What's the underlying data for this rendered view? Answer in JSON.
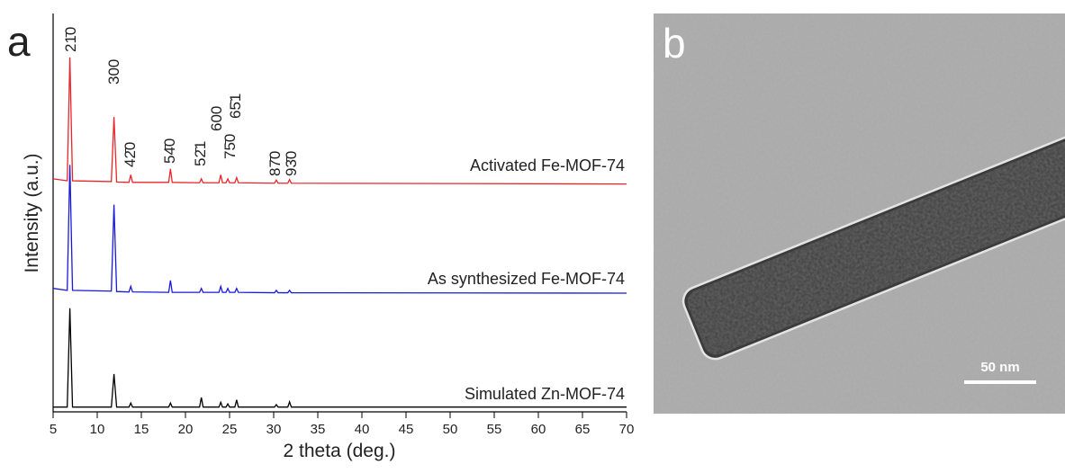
{
  "chart_data": {
    "type": "line",
    "panel_label": "a",
    "x_label": "2 theta (deg.)",
    "y_label": "Intensity (a.u.)",
    "x": [
      5,
      6.6,
      6.9,
      7.2,
      11.6,
      11.9,
      12.2,
      13.6,
      13.8,
      14.0,
      18.1,
      18.3,
      18.5,
      21.6,
      21.8,
      22.0,
      23.8,
      24.0,
      24.2,
      24.6,
      24.8,
      25.0,
      25.6,
      25.8,
      26.0,
      30.1,
      30.3,
      30.5,
      31.6,
      31.8,
      32.0,
      70
    ],
    "series": [
      {
        "name": "Activated Fe-MOF-74",
        "color": "#e8262a",
        "values": [
          58.5,
          58,
          89,
          58,
          57.8,
          74,
          57.7,
          57.6,
          59.5,
          57.6,
          57.6,
          61,
          57.6,
          57.5,
          58.5,
          57.5,
          57.5,
          59.5,
          57.5,
          57.5,
          58.5,
          57.5,
          57.5,
          58.8,
          57.5,
          57.4,
          58.2,
          57.4,
          57.4,
          58.3,
          57.4,
          57.2
        ]
      },
      {
        "name": "As synthesized Fe-MOF-74",
        "color": "#1a1ad6",
        "values": [
          31,
          30.5,
          62,
          30.5,
          30.3,
          52,
          30.2,
          30.1,
          31.5,
          30.1,
          30,
          33,
          30,
          30,
          31,
          30,
          30,
          31.5,
          30,
          30,
          31,
          30,
          30,
          31,
          30,
          29.9,
          30.5,
          29.9,
          29.9,
          30.5,
          29.9,
          29.8
        ]
      },
      {
        "name": "Simulated Zn-MOF-74",
        "color": "#000000",
        "values": [
          1.2,
          1.2,
          26,
          1.2,
          1.2,
          9.5,
          1.2,
          1.2,
          2.2,
          1.2,
          1.2,
          2.2,
          1.2,
          1.2,
          3.6,
          1.2,
          1.2,
          2.4,
          1.2,
          1.2,
          2,
          1.2,
          1.2,
          3,
          1.2,
          1.2,
          1.8,
          1.2,
          1.2,
          2.5,
          1.2,
          1.2
        ]
      }
    ],
    "xlim": [
      5,
      70
    ],
    "xticks": [
      5,
      10,
      15,
      20,
      25,
      30,
      35,
      40,
      45,
      50,
      55,
      60,
      65,
      70
    ],
    "ylim": [
      0,
      100
    ],
    "annotations": [
      "21̄0",
      "300",
      "42̄0",
      "54̄0",
      "52̄1",
      "600",
      "75̄0",
      "65̄1",
      "87̄0",
      "93̄0"
    ]
  },
  "panel_b": {
    "label": "b",
    "scale_bar": "50 nm"
  }
}
